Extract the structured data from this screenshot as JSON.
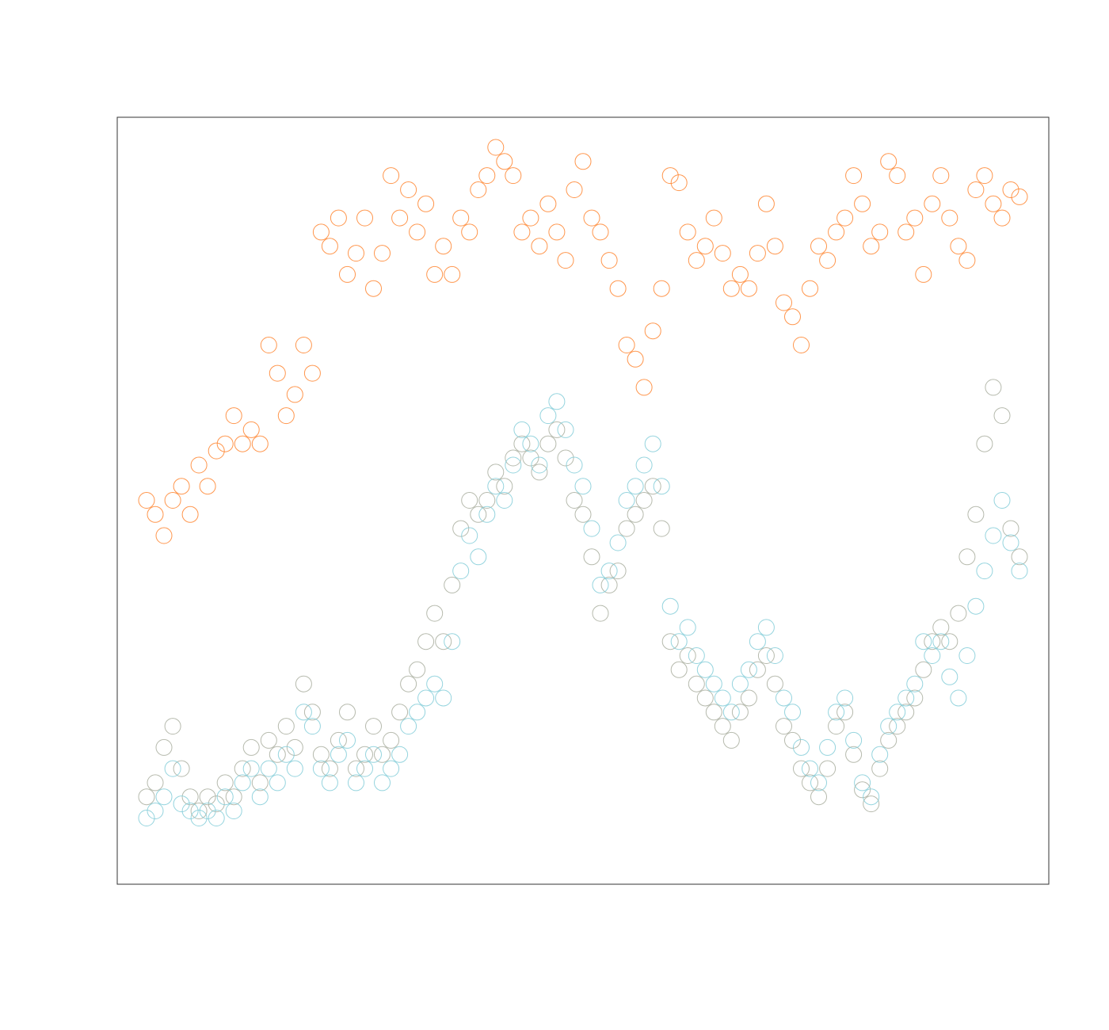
{
  "chart_data": {
    "type": "scatter",
    "title": "",
    "xlabel": "",
    "ylabel": "",
    "xlim": [
      0,
      100
    ],
    "ylim": [
      0,
      1
    ],
    "grid": false,
    "legend": "none",
    "marker": "open-circle",
    "colors": {
      "orange": "#FF842E",
      "blue": "#83CCD8",
      "grey": "#A9AE9F",
      "frame": "#333333"
    },
    "series": [
      {
        "color": "#FF842E",
        "x": [
          0,
          1,
          2,
          3,
          4,
          5,
          6,
          7,
          8,
          9,
          10,
          11,
          12,
          13,
          14,
          15,
          16,
          17,
          18,
          19,
          20,
          21,
          22,
          23,
          24,
          25,
          26,
          27,
          28,
          29,
          30,
          31,
          32,
          33,
          34,
          35,
          36,
          37,
          38,
          39,
          40,
          41,
          42,
          43,
          44,
          45,
          46,
          47,
          48,
          49,
          50,
          51,
          52,
          53,
          54,
          55,
          56,
          57,
          58,
          59,
          60,
          61,
          62,
          63,
          64,
          65,
          66,
          67,
          68,
          69,
          70,
          71,
          72,
          73,
          74,
          75,
          76,
          77,
          78,
          79,
          80,
          81,
          82,
          83,
          84,
          85,
          86,
          87,
          88,
          89,
          90,
          91,
          92,
          93,
          94,
          95,
          96,
          97,
          98,
          99,
          100
        ],
        "y": [
          0.5,
          0.48,
          0.45,
          0.5,
          0.52,
          0.48,
          0.55,
          0.52,
          0.57,
          0.58,
          0.62,
          0.58,
          0.6,
          0.58,
          0.72,
          0.68,
          0.62,
          0.65,
          0.72,
          0.68,
          0.88,
          0.86,
          0.9,
          0.82,
          0.85,
          0.9,
          0.8,
          0.85,
          0.96,
          0.9,
          0.94,
          0.88,
          0.92,
          0.82,
          0.86,
          0.82,
          0.9,
          0.88,
          0.94,
          0.96,
          1.0,
          0.98,
          0.96,
          0.88,
          0.9,
          0.86,
          0.92,
          0.88,
          0.84,
          0.94,
          0.98,
          0.9,
          0.88,
          0.84,
          0.8,
          0.72,
          0.7,
          0.66,
          0.74,
          0.8,
          0.96,
          0.95,
          0.88,
          0.84,
          0.86,
          0.9,
          0.85,
          0.8,
          0.82,
          0.8,
          0.85,
          0.92,
          0.86,
          0.78,
          0.76,
          0.72,
          0.8,
          0.86,
          0.84,
          0.88,
          0.9,
          0.96,
          0.92,
          0.86,
          0.88,
          0.98,
          0.96,
          0.88,
          0.9,
          0.82,
          0.92,
          0.96,
          0.9,
          0.86,
          0.84,
          0.94,
          0.96,
          0.92,
          0.9,
          0.94,
          0.93
        ]
      },
      {
        "color": "#83CCD8",
        "x": [
          0,
          1,
          2,
          3,
          4,
          5,
          6,
          7,
          8,
          9,
          10,
          11,
          12,
          13,
          14,
          15,
          16,
          17,
          18,
          19,
          20,
          21,
          22,
          23,
          24,
          25,
          26,
          27,
          28,
          29,
          30,
          31,
          32,
          33,
          34,
          35,
          36,
          37,
          38,
          39,
          40,
          41,
          42,
          43,
          44,
          45,
          46,
          47,
          48,
          49,
          50,
          51,
          52,
          53,
          54,
          55,
          56,
          57,
          58,
          59,
          60,
          61,
          62,
          63,
          64,
          65,
          66,
          67,
          68,
          69,
          70,
          71,
          72,
          73,
          74,
          75,
          76,
          77,
          78,
          79,
          80,
          81,
          82,
          83,
          84,
          85,
          86,
          87,
          88,
          89,
          90,
          91,
          92,
          93,
          94,
          95,
          96,
          97,
          98,
          99,
          100
        ],
        "y": [
          0.05,
          0.06,
          0.08,
          0.12,
          0.07,
          0.06,
          0.05,
          0.06,
          0.05,
          0.08,
          0.06,
          0.1,
          0.12,
          0.08,
          0.12,
          0.1,
          0.14,
          0.12,
          0.2,
          0.18,
          0.12,
          0.1,
          0.14,
          0.16,
          0.1,
          0.12,
          0.14,
          0.1,
          0.12,
          0.14,
          0.18,
          0.2,
          0.22,
          0.24,
          0.22,
          0.3,
          0.4,
          0.45,
          0.42,
          0.48,
          0.52,
          0.5,
          0.55,
          0.6,
          0.58,
          0.55,
          0.62,
          0.64,
          0.6,
          0.55,
          0.52,
          0.46,
          0.38,
          0.4,
          0.44,
          0.5,
          0.52,
          0.55,
          0.58,
          0.52,
          0.35,
          0.3,
          0.32,
          0.28,
          0.26,
          0.24,
          0.22,
          0.2,
          0.24,
          0.26,
          0.3,
          0.32,
          0.28,
          0.22,
          0.2,
          0.15,
          0.12,
          0.1,
          0.15,
          0.2,
          0.22,
          0.16,
          0.1,
          0.08,
          0.14,
          0.18,
          0.2,
          0.22,
          0.24,
          0.3,
          0.28,
          0.3,
          0.25,
          0.22,
          0.28,
          0.35,
          0.4,
          0.45,
          0.5,
          0.44,
          0.4
        ]
      },
      {
        "color": "#A9AE9F",
        "x": [
          0,
          1,
          2,
          3,
          4,
          5,
          6,
          7,
          8,
          9,
          10,
          11,
          12,
          13,
          14,
          15,
          16,
          17,
          18,
          19,
          20,
          21,
          22,
          23,
          24,
          25,
          26,
          27,
          28,
          29,
          30,
          31,
          32,
          33,
          34,
          35,
          36,
          37,
          38,
          39,
          40,
          41,
          42,
          43,
          44,
          45,
          46,
          47,
          48,
          49,
          50,
          51,
          52,
          53,
          54,
          55,
          56,
          57,
          58,
          59,
          60,
          61,
          62,
          63,
          64,
          65,
          66,
          67,
          68,
          69,
          70,
          71,
          72,
          73,
          74,
          75,
          76,
          77,
          78,
          79,
          80,
          81,
          82,
          83,
          84,
          85,
          86,
          87,
          88,
          89,
          90,
          91,
          92,
          93,
          94,
          95,
          96,
          97,
          98,
          99,
          100
        ],
        "y": [
          0.08,
          0.1,
          0.15,
          0.18,
          0.12,
          0.08,
          0.06,
          0.08,
          0.07,
          0.1,
          0.08,
          0.12,
          0.15,
          0.1,
          0.16,
          0.14,
          0.18,
          0.15,
          0.24,
          0.2,
          0.14,
          0.12,
          0.16,
          0.2,
          0.12,
          0.14,
          0.18,
          0.14,
          0.16,
          0.2,
          0.24,
          0.26,
          0.3,
          0.34,
          0.3,
          0.38,
          0.46,
          0.5,
          0.48,
          0.5,
          0.54,
          0.52,
          0.56,
          0.58,
          0.56,
          0.54,
          0.58,
          0.6,
          0.56,
          0.5,
          0.48,
          0.42,
          0.34,
          0.38,
          0.4,
          0.46,
          0.48,
          0.5,
          0.52,
          0.46,
          0.3,
          0.26,
          0.28,
          0.24,
          0.22,
          0.2,
          0.18,
          0.16,
          0.2,
          0.22,
          0.26,
          0.28,
          0.24,
          0.18,
          0.16,
          0.12,
          0.1,
          0.08,
          0.12,
          0.18,
          0.2,
          0.14,
          0.09,
          0.07,
          0.12,
          0.16,
          0.18,
          0.2,
          0.22,
          0.26,
          0.3,
          0.32,
          0.3,
          0.34,
          0.42,
          0.48,
          0.58,
          0.66,
          0.62,
          0.46,
          0.42
        ]
      }
    ]
  }
}
